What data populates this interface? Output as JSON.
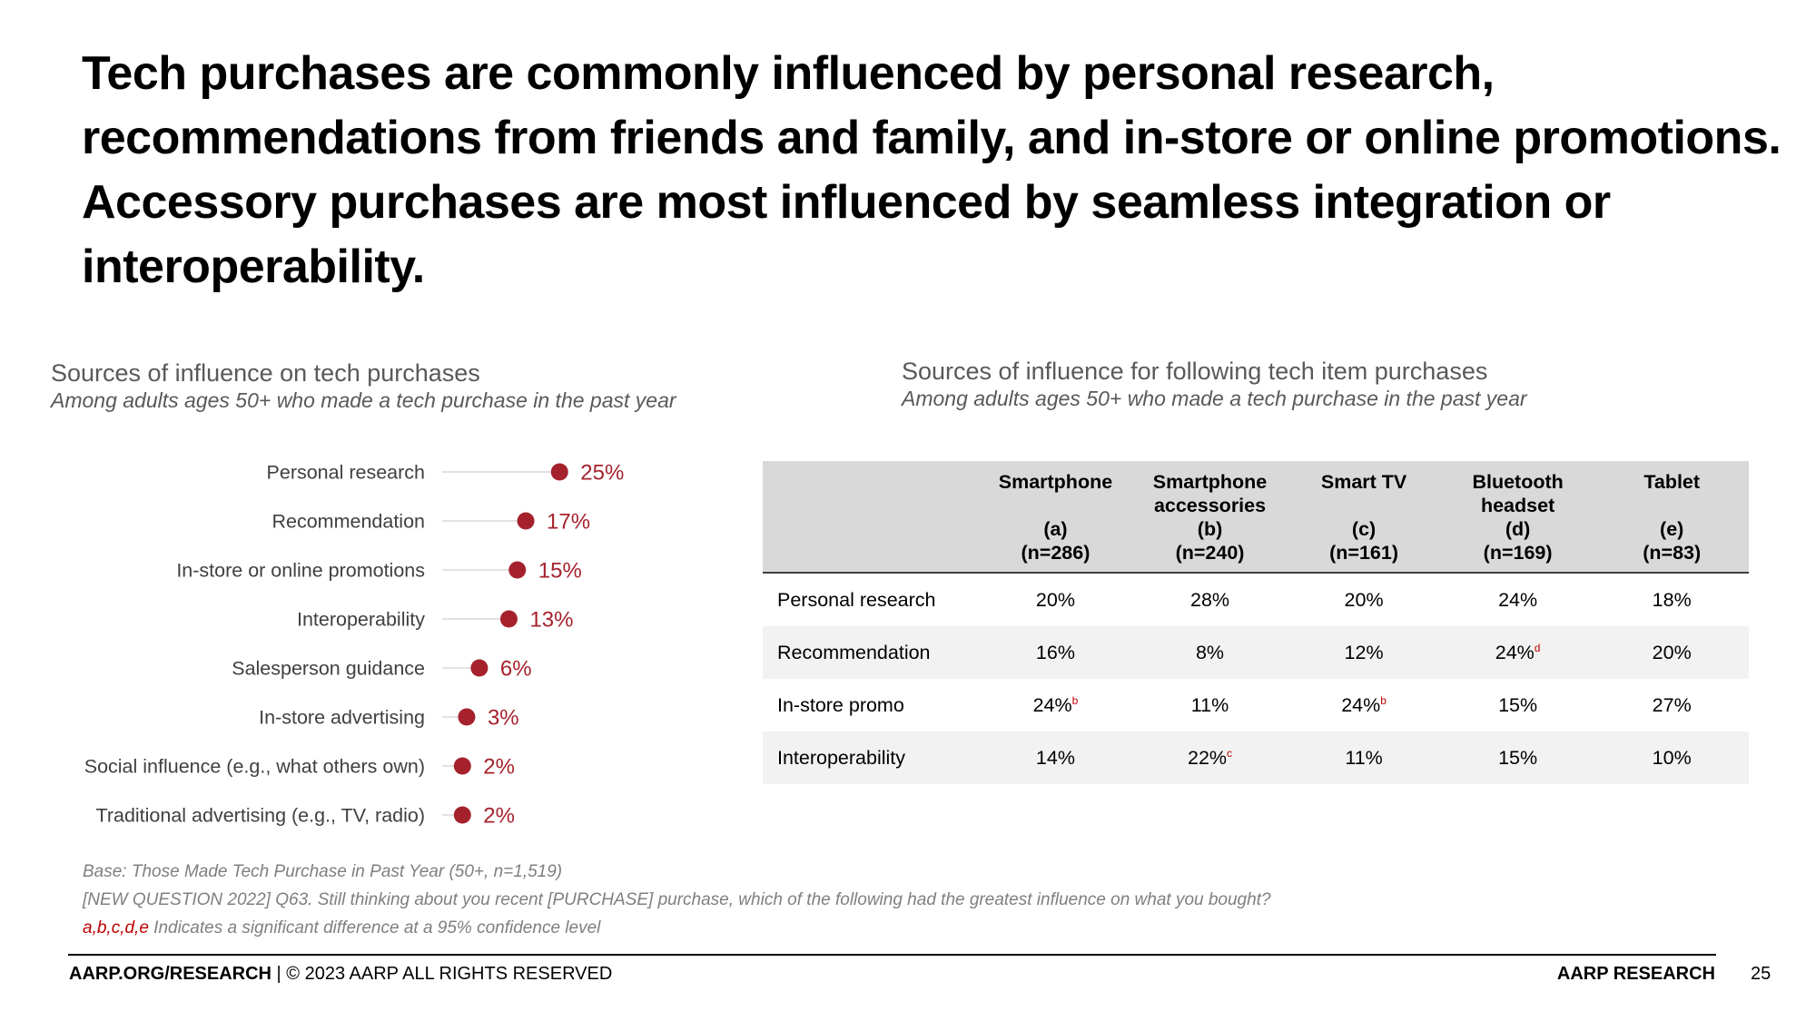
{
  "headline": {
    "lines": [
      "Tech purchases are commonly influenced by personal research,",
      "recommendations from friends and family, and in-store or online promotions.",
      "Accessory purchases are most influenced by seamless integration or",
      "interoperability."
    ]
  },
  "left_section": {
    "title": "Sources of influence on tech purchases",
    "subtitle": "Among adults ages 50+ who made a tech purchase in the past year"
  },
  "right_section": {
    "title": "Sources of influence for following tech item purchases",
    "subtitle": "Among adults ages 50+ who made a tech purchase in the past year"
  },
  "chart_data": [
    {
      "type": "lollipop",
      "title": "Sources of influence on tech purchases",
      "subtitle": "Among adults ages 50+ who made a tech purchase in the past year",
      "categories": [
        "Personal research",
        "Recommendation",
        "In-store or online promotions",
        "Interoperability",
        "Salesperson guidance",
        "In-store advertising",
        "Social influence (e.g., what others own)",
        "Traditional advertising (e.g., TV, radio)"
      ],
      "values": [
        25,
        17,
        15,
        13,
        6,
        3,
        2,
        2
      ],
      "value_labels": [
        "25%",
        "17%",
        "15%",
        "13%",
        "6%",
        "3%",
        "2%",
        "2%"
      ],
      "unit": "%",
      "color": "#a5222d"
    },
    {
      "type": "table",
      "title": "Sources of influence for following tech item purchases",
      "subtitle": "Among adults ages 50+ who made a tech purchase in the past year",
      "columns": [
        {
          "name": "Smartphone",
          "letter": "(a)",
          "n": "(n=286)"
        },
        {
          "name": "Smartphone accessories",
          "letter": "(b)",
          "n": "(n=240)"
        },
        {
          "name": "Smart TV",
          "letter": "(c)",
          "n": "(n=161)"
        },
        {
          "name": "Bluetooth headset",
          "letter": "(d)",
          "n": "(n=169)"
        },
        {
          "name": "Tablet",
          "letter": "(e)",
          "n": "(n=83)"
        }
      ],
      "rows": [
        {
          "label": "Personal research",
          "cells": [
            {
              "v": "20%",
              "s": ""
            },
            {
              "v": "28%",
              "s": ""
            },
            {
              "v": "20%",
              "s": ""
            },
            {
              "v": "24%",
              "s": ""
            },
            {
              "v": "18%",
              "s": ""
            }
          ]
        },
        {
          "label": "Recommendation",
          "cells": [
            {
              "v": "16%",
              "s": ""
            },
            {
              "v": "8%",
              "s": ""
            },
            {
              "v": "12%",
              "s": ""
            },
            {
              "v": "24%",
              "s": "d"
            },
            {
              "v": "20%",
              "s": ""
            }
          ]
        },
        {
          "label": "In-store promo",
          "cells": [
            {
              "v": "24%",
              "s": "b"
            },
            {
              "v": "11%",
              "s": ""
            },
            {
              "v": "24%",
              "s": "b"
            },
            {
              "v": "15%",
              "s": ""
            },
            {
              "v": "27%",
              "s": ""
            }
          ]
        },
        {
          "label": "Interoperability",
          "cells": [
            {
              "v": "14%",
              "s": ""
            },
            {
              "v": "22%",
              "s": "c"
            },
            {
              "v": "11%",
              "s": ""
            },
            {
              "v": "15%",
              "s": ""
            },
            {
              "v": "10%",
              "s": ""
            }
          ]
        }
      ]
    }
  ],
  "notes": {
    "base": "Base: Those Made Tech Purchase in Past Year (50+, n=1,519)",
    "question": "[NEW QUESTION 2022] Q63. Still thinking about you recent [PURCHASE] purchase, which of the following had the greatest influence on what you bought?",
    "sig_letters": "a,b,c,d,e",
    "sig_text": " Indicates a significant difference at a 95% confidence level"
  },
  "footer": {
    "site": "AARP.ORG/RESEARCH",
    "copyright": " | © 2023 AARP ALL RIGHTS RESERVED",
    "brand": "AARP RESEARCH",
    "page_number": "25"
  }
}
